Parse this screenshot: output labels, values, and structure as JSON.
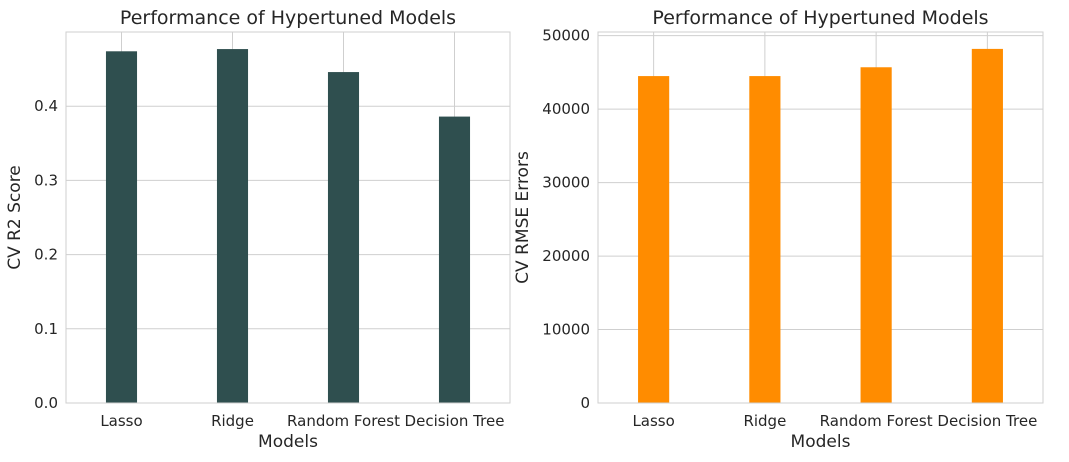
{
  "chart_data": [
    {
      "type": "bar",
      "title": "Performance of Hypertuned Models",
      "xlabel": "Models",
      "ylabel": "CV R2 Score",
      "categories": [
        "Lasso",
        "Ridge",
        "Random Forest",
        "Decision Tree"
      ],
      "values": [
        0.474,
        0.477,
        0.446,
        0.386
      ],
      "ylim": [
        0,
        0.5
      ],
      "yticks": [
        0.0,
        0.1,
        0.2,
        0.3,
        0.4
      ],
      "ytick_labels": [
        "0.0",
        "0.1",
        "0.2",
        "0.3",
        "0.4"
      ],
      "bar_color": "#2f4f4f",
      "grid": true
    },
    {
      "type": "bar",
      "title": "Performance of Hypertuned Models",
      "xlabel": "Models",
      "ylabel": "CV RMSE Errors",
      "categories": [
        "Lasso",
        "Ridge",
        "Random Forest",
        "Decision Tree"
      ],
      "values": [
        44500,
        44500,
        45700,
        48200
      ],
      "ylim": [
        0,
        50500
      ],
      "yticks": [
        0,
        10000,
        20000,
        30000,
        40000,
        50000
      ],
      "ytick_labels": [
        "0",
        "10000",
        "20000",
        "30000",
        "40000",
        "50000"
      ],
      "bar_color": "#ff8c00",
      "grid": true
    }
  ]
}
